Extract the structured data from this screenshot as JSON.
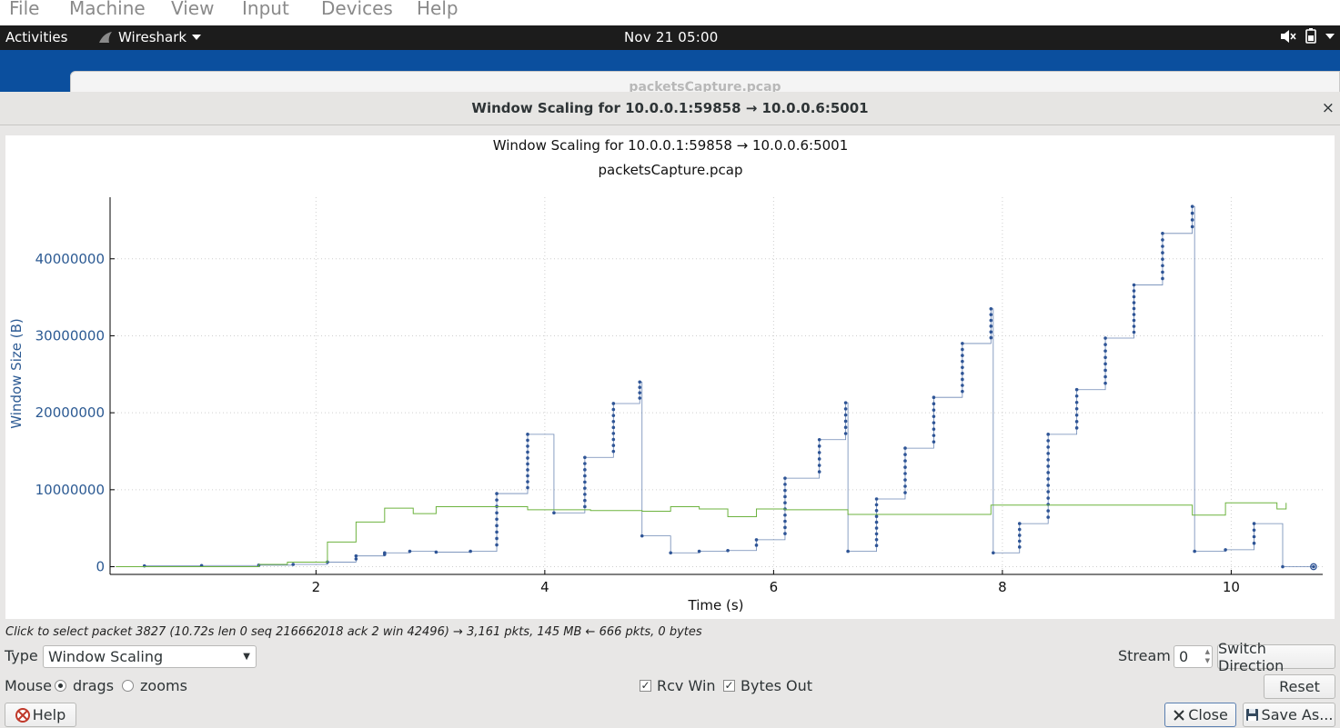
{
  "vbox_menu": [
    "File",
    "Machine",
    "View",
    "Input",
    "Devices",
    "Help"
  ],
  "topbar": {
    "activities": "Activities",
    "app_name": "Wireshark",
    "clock": "Nov 21  05:00"
  },
  "background_window": {
    "title": "packetsCapture.pcap"
  },
  "dialog": {
    "title": "Window Scaling for 10.0.0.1:59858 → 10.0.0.6:5001",
    "close_glyph": "×"
  },
  "chart_data": {
    "type": "line",
    "title": "Window Scaling for 10.0.0.1:59858 → 10.0.0.6:5001",
    "subtitle": "packetsCapture.pcap",
    "xlabel": "Time (s)",
    "ylabel": "Window Size (B)",
    "xlim": [
      0.2,
      10.8
    ],
    "ylim": [
      -1000000,
      48000000
    ],
    "x_ticks": [
      2,
      4,
      6,
      8,
      10
    ],
    "y_ticks": [
      0,
      10000000,
      20000000,
      30000000,
      40000000
    ],
    "y_tick_labels": [
      "0",
      "10000000",
      "20000000",
      "30000000",
      "40000000"
    ],
    "grid": true,
    "colors": {
      "bytes_out": "#2f5596",
      "rcv_win": "#6db33f",
      "axis_label": "#2c5a93"
    },
    "series": [
      {
        "name": "Bytes Out",
        "style": "step-with-dots",
        "x": [
          0.25,
          0.5,
          1.0,
          1.5,
          1.8,
          2.1,
          2.35,
          2.6,
          2.82,
          3.05,
          3.35,
          3.58,
          3.85,
          4.08,
          4.35,
          4.6,
          4.83,
          4.85,
          5.1,
          5.35,
          5.6,
          5.85,
          6.1,
          6.4,
          6.63,
          6.65,
          6.9,
          7.15,
          7.4,
          7.65,
          7.9,
          7.92,
          8.15,
          8.4,
          8.65,
          8.9,
          9.15,
          9.4,
          9.66,
          9.68,
          9.95,
          10.2,
          10.45,
          10.72
        ],
        "values": [
          0,
          100000,
          150000,
          200000,
          300000,
          600000,
          1400000,
          1800000,
          2000000,
          1900000,
          2000000,
          9500000,
          17200000,
          7000000,
          14200000,
          21200000,
          24000000,
          4000000,
          1800000,
          2000000,
          2100000,
          3500000,
          11500000,
          16500000,
          21300000,
          2000000,
          8800000,
          15400000,
          22000000,
          29000000,
          33500000,
          1800000,
          5600000,
          17200000,
          23000000,
          29700000,
          36600000,
          43300000,
          46800000,
          2000000,
          2200000,
          5600000,
          0,
          0
        ]
      },
      {
        "name": "Rcv Win",
        "style": "step",
        "x": [
          0.25,
          1.5,
          1.75,
          2.1,
          2.35,
          2.6,
          2.85,
          3.05,
          3.5,
          3.85,
          4.4,
          4.85,
          5.1,
          5.35,
          5.6,
          5.85,
          6.1,
          6.65,
          7.9,
          9.66,
          9.95,
          10.4,
          10.48
        ],
        "values": [
          0,
          300000,
          600000,
          3200000,
          5800000,
          7600000,
          6900000,
          7800000,
          7800000,
          7400000,
          7300000,
          7200000,
          7800000,
          7500000,
          6500000,
          7500000,
          7400000,
          6800000,
          8000000,
          6700000,
          8300000,
          7500000,
          8300000
        ]
      }
    ]
  },
  "status_text": "Click to select packet 3827 (10.72s len 0 seq 216662018 ack 2 win 42496) → 3,161 pkts, 145 MB ← 666 pkts, 0 bytes",
  "controls": {
    "type_label": "Type",
    "type_value": "Window Scaling",
    "stream_label": "Stream",
    "stream_value": "0",
    "switch_direction": "Switch Direction",
    "mouse_label": "Mouse",
    "drags": "drags",
    "zooms": "zooms",
    "rcv_win": "Rcv Win",
    "bytes_out": "Bytes Out",
    "check_glyph": "✓",
    "reset": "Reset",
    "help": "Help",
    "close": "Close",
    "save_as": "Save As..."
  }
}
